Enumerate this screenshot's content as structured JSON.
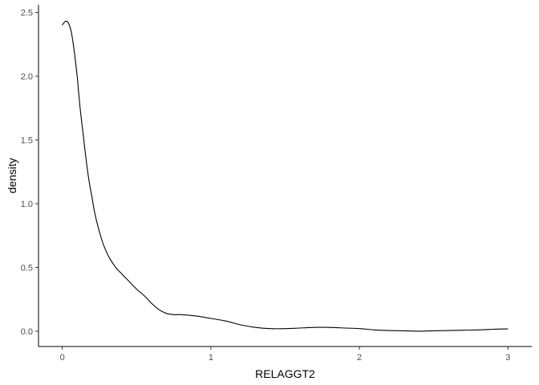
{
  "chart_data": {
    "type": "line",
    "title": "",
    "xlabel": "RELAGGT2",
    "ylabel": "density",
    "xlim": [
      -0.16,
      3.16
    ],
    "ylim": [
      -0.12,
      2.56
    ],
    "xticks": [
      {
        "value": 0,
        "label": "0"
      },
      {
        "value": 1,
        "label": "1"
      },
      {
        "value": 2,
        "label": "2"
      },
      {
        "value": 3,
        "label": "3"
      }
    ],
    "yticks": [
      {
        "value": 0,
        "label": "0.0"
      },
      {
        "value": 0.5,
        "label": "0.5"
      },
      {
        "value": 1,
        "label": "1.0"
      },
      {
        "value": 1.5,
        "label": "1.5"
      },
      {
        "value": 2,
        "label": "2.0"
      },
      {
        "value": 2.5,
        "label": "2.5"
      }
    ],
    "grid": false,
    "line_color": "#000000",
    "series": [
      {
        "x": [
          0.0,
          0.02,
          0.04,
          0.06,
          0.08,
          0.1,
          0.12,
          0.14,
          0.16,
          0.18,
          0.2,
          0.22,
          0.25,
          0.28,
          0.32,
          0.36,
          0.4,
          0.45,
          0.5,
          0.55,
          0.6,
          0.65,
          0.7,
          0.75,
          0.8,
          0.9,
          1.0,
          1.1,
          1.2,
          1.3,
          1.4,
          1.5,
          1.6,
          1.7,
          1.8,
          1.9,
          2.0,
          2.1,
          2.2,
          2.3,
          2.4,
          2.5,
          2.6,
          2.7,
          2.8,
          2.9,
          3.0
        ],
        "y": [
          2.4,
          2.43,
          2.42,
          2.35,
          2.2,
          2.0,
          1.75,
          1.55,
          1.35,
          1.18,
          1.05,
          0.92,
          0.78,
          0.67,
          0.57,
          0.5,
          0.45,
          0.39,
          0.33,
          0.28,
          0.22,
          0.17,
          0.14,
          0.13,
          0.13,
          0.12,
          0.1,
          0.08,
          0.05,
          0.03,
          0.02,
          0.02,
          0.025,
          0.03,
          0.03,
          0.025,
          0.02,
          0.01,
          0.005,
          0.003,
          0.0,
          0.003,
          0.005,
          0.008,
          0.01,
          0.015,
          0.018
        ]
      }
    ]
  }
}
